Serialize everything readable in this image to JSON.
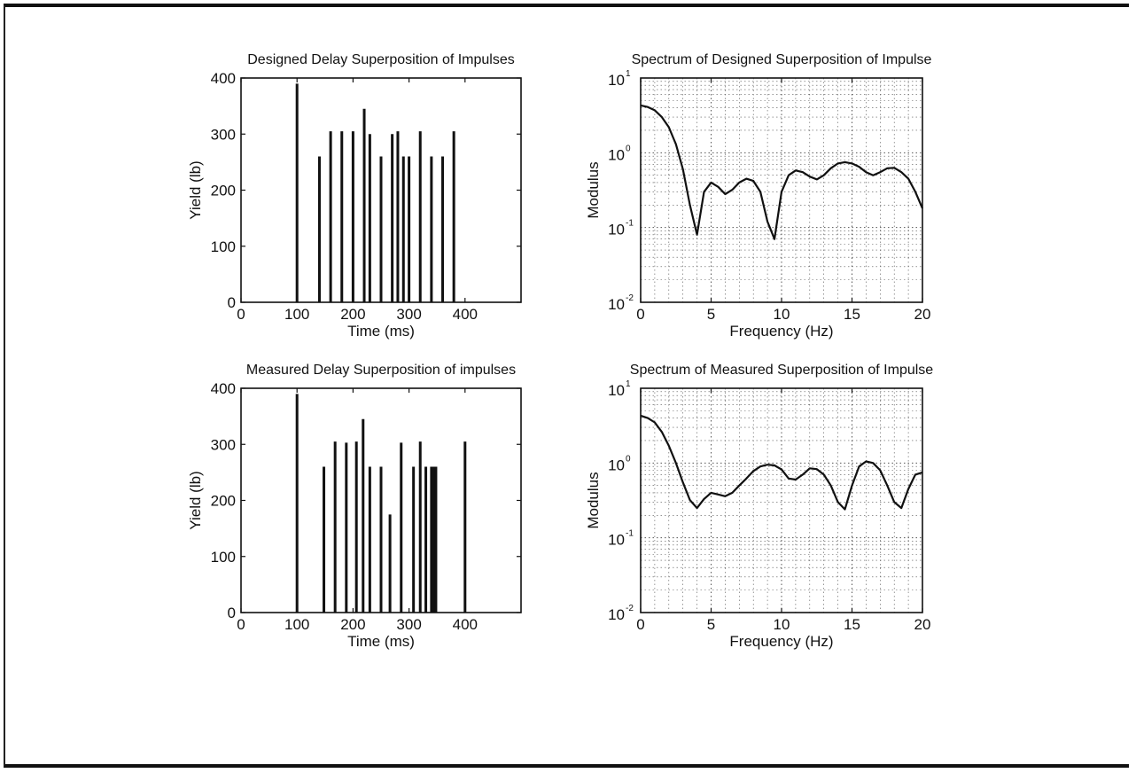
{
  "chart_data": [
    {
      "type": "bar",
      "title": "Designed Delay Superposition of Impulses",
      "xlabel": "Time  (ms)",
      "ylabel": "Yield  (lb)",
      "xlim": [
        0,
        500
      ],
      "ylim": [
        0,
        400
      ],
      "xticks": [
        "0",
        "100",
        "200",
        "300",
        "400"
      ],
      "yticks": [
        "0",
        "100",
        "200",
        "300",
        "400"
      ],
      "grid": false,
      "x": [
        100,
        140,
        160,
        180,
        200,
        220,
        230,
        250,
        270,
        280,
        290,
        300,
        320,
        340,
        360,
        380
      ],
      "values": [
        390,
        260,
        305,
        305,
        305,
        345,
        300,
        260,
        300,
        305,
        260,
        260,
        305,
        260,
        260,
        305
      ]
    },
    {
      "type": "line",
      "title": "Spectrum of Designed Superposition of Impulse",
      "xlabel": "Frequency  (Hz)",
      "ylabel": "Modulus",
      "xlim": [
        0,
        20
      ],
      "ylim": [
        0.01,
        10
      ],
      "yscale": "log",
      "xticks": [
        "0",
        "5",
        "10",
        "15",
        "20"
      ],
      "yticks": [
        "10",
        "10",
        "10",
        "10"
      ],
      "yticks_exp": [
        "-2",
        "-1",
        "0",
        "1"
      ],
      "grid": true,
      "x": [
        0,
        0.5,
        1,
        1.5,
        2,
        2.5,
        3,
        3.5,
        4,
        4.5,
        5,
        5.5,
        6,
        6.5,
        7,
        7.5,
        8,
        8.5,
        9,
        9.5,
        10,
        10.5,
        11,
        11.5,
        12,
        12.5,
        13,
        13.5,
        14,
        14.5,
        15,
        15.5,
        16,
        16.5,
        17,
        17.5,
        18,
        18.5,
        19,
        19.5,
        20
      ],
      "values": [
        4.3,
        4.1,
        3.7,
        3.0,
        2.2,
        1.3,
        0.6,
        0.2,
        0.08,
        0.3,
        0.4,
        0.35,
        0.28,
        0.32,
        0.4,
        0.45,
        0.42,
        0.3,
        0.12,
        0.07,
        0.3,
        0.5,
        0.58,
        0.55,
        0.48,
        0.44,
        0.5,
        0.62,
        0.72,
        0.75,
        0.72,
        0.65,
        0.55,
        0.5,
        0.55,
        0.62,
        0.63,
        0.55,
        0.45,
        0.3,
        0.18
      ]
    },
    {
      "type": "bar",
      "title": "Measured Delay Superposition of impulses",
      "xlabel": "Time  (ms)",
      "ylabel": "Yield  (lb)",
      "xlim": [
        0,
        500
      ],
      "ylim": [
        0,
        400
      ],
      "xticks": [
        "0",
        "100",
        "200",
        "300",
        "400"
      ],
      "yticks": [
        "0",
        "100",
        "200",
        "300",
        "400"
      ],
      "grid": false,
      "x": [
        100,
        148,
        168,
        188,
        206,
        218,
        230,
        250,
        266,
        286,
        308,
        320,
        330,
        340,
        344,
        348,
        400
      ],
      "values": [
        390,
        260,
        305,
        303,
        305,
        345,
        260,
        260,
        175,
        303,
        260,
        305,
        260,
        260,
        260,
        260,
        305
      ]
    },
    {
      "type": "line",
      "title": "Spectrum of Measured Superposition of Impulse",
      "xlabel": "Frequency  (Hz)",
      "ylabel": "Modulus",
      "xlim": [
        0,
        20
      ],
      "ylim": [
        0.01,
        10
      ],
      "yscale": "log",
      "xticks": [
        "0",
        "5",
        "10",
        "15",
        "20"
      ],
      "yticks": [
        "10",
        "10",
        "10",
        "10"
      ],
      "yticks_exp": [
        "-2",
        "-1",
        "0",
        "1"
      ],
      "grid": true,
      "x": [
        0,
        0.5,
        1,
        1.5,
        2,
        2.5,
        3,
        3.5,
        4,
        4.5,
        5,
        5.5,
        6,
        6.5,
        7,
        7.5,
        8,
        8.5,
        9,
        9.5,
        10,
        10.5,
        11,
        11.5,
        12,
        12.5,
        13,
        13.5,
        14,
        14.5,
        15,
        15.5,
        16,
        16.5,
        17,
        17.5,
        18,
        18.5,
        19,
        19.5,
        20
      ],
      "values": [
        4.3,
        4.0,
        3.5,
        2.6,
        1.7,
        1.0,
        0.55,
        0.32,
        0.25,
        0.33,
        0.4,
        0.38,
        0.36,
        0.4,
        0.5,
        0.62,
        0.78,
        0.9,
        0.95,
        0.93,
        0.82,
        0.62,
        0.6,
        0.7,
        0.85,
        0.83,
        0.7,
        0.5,
        0.3,
        0.24,
        0.5,
        0.9,
        1.05,
        1.0,
        0.8,
        0.5,
        0.3,
        0.25,
        0.45,
        0.7,
        0.75
      ]
    }
  ]
}
